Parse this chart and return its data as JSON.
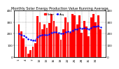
{
  "title": "Monthly Solar Energy Production Value Running Average",
  "values": [
    280,
    220,
    160,
    90,
    30,
    60,
    90,
    120,
    350,
    300,
    240,
    280,
    250,
    290,
    370,
    310,
    260,
    200,
    150,
    240,
    340,
    300,
    210,
    370,
    360,
    280,
    360,
    210,
    310,
    260,
    180,
    340,
    370,
    300,
    360,
    240
  ],
  "running_avg": [
    200,
    190,
    185,
    170,
    155,
    148,
    145,
    145,
    175,
    185,
    188,
    192,
    190,
    195,
    210,
    215,
    215,
    208,
    200,
    202,
    215,
    218,
    215,
    228,
    238,
    238,
    248,
    242,
    248,
    245,
    240,
    252,
    262,
    260,
    268,
    255
  ],
  "bar_color": "#ff0000",
  "avg_color": "#0000ff",
  "bg_color": "#ffffff",
  "grid_color": "#888888",
  "ylim": [
    0,
    400
  ],
  "ytick_values": [
    0,
    100,
    200,
    300,
    400
  ],
  "ytick_labels": [
    "0",
    "100",
    "200",
    "300",
    "400"
  ],
  "legend_solar": "Solar",
  "legend_avg": "Avg",
  "title_fontsize": 3.5,
  "tick_fontsize": 3.0,
  "legend_fontsize": 2.8
}
